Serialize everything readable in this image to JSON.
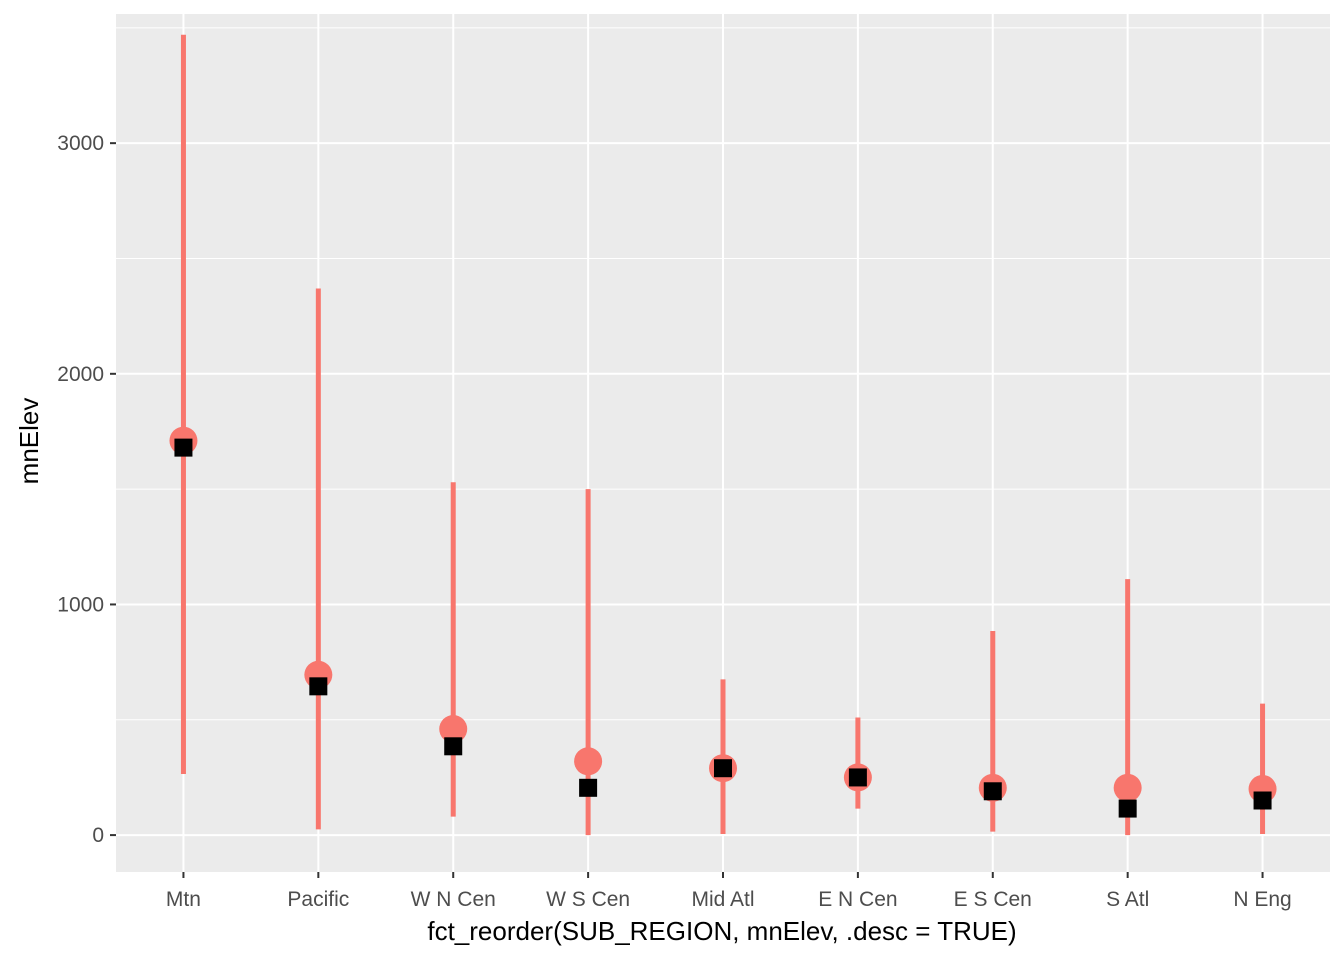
{
  "chart_data": {
    "type": "scatter",
    "xlabel": "fct_reorder(SUB_REGION, mnElev, .desc = TRUE)",
    "ylabel": "mnElev",
    "categories": [
      "Mtn",
      "Pacific",
      "W N Cen",
      "W S Cen",
      "Mid Atl",
      "E N Cen",
      "E S Cen",
      "S Atl",
      "N Eng"
    ],
    "ylim": [
      -160,
      3560
    ],
    "yticks": [
      0,
      1000,
      2000,
      3000
    ],
    "grid": true,
    "series": [
      {
        "marker": "point-range",
        "mean": [
          1710,
          695,
          460,
          320,
          290,
          250,
          205,
          205,
          200
        ],
        "min": [
          265,
          25,
          80,
          0,
          5,
          115,
          15,
          0,
          5
        ],
        "max": [
          3470,
          2370,
          1530,
          1500,
          675,
          510,
          885,
          1110,
          570
        ]
      },
      {
        "marker": "square",
        "values": [
          1680,
          645,
          385,
          205,
          290,
          250,
          190,
          115,
          150
        ]
      }
    ],
    "colors": {
      "range": "#f8766d",
      "point": "#f8766d",
      "square": "#000000",
      "panel": "#ebebeb",
      "grid": "#ffffff"
    }
  }
}
